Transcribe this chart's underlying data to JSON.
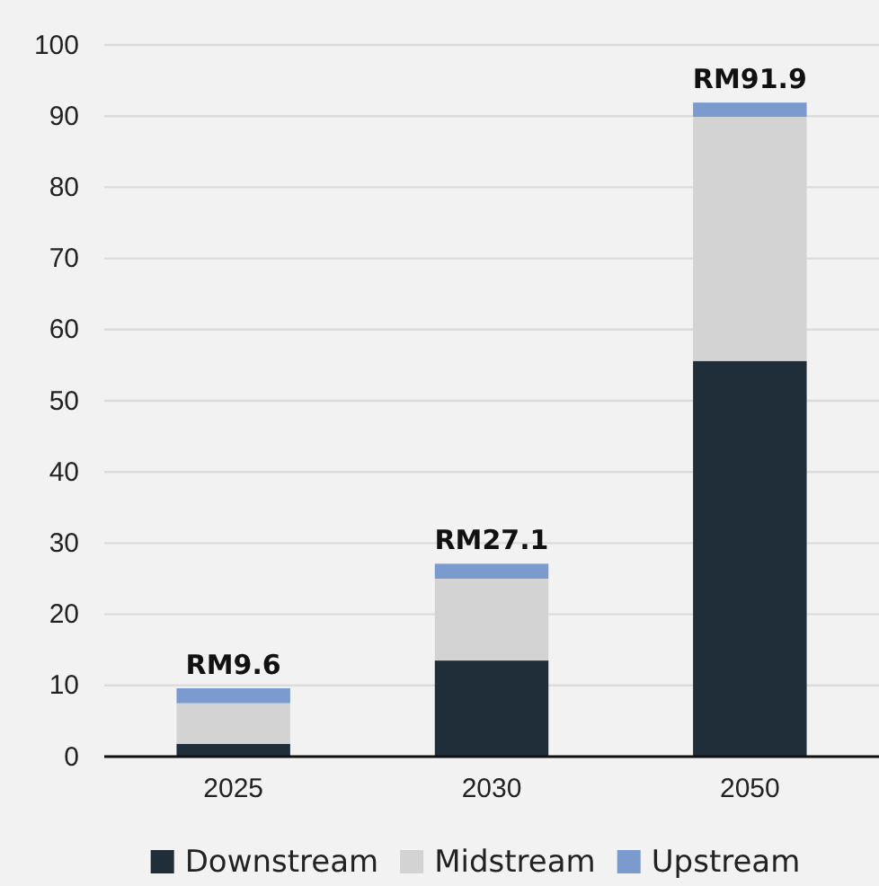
{
  "chart_data": {
    "type": "bar",
    "stacked": true,
    "categories": [
      "2025",
      "2030",
      "2050"
    ],
    "series": [
      {
        "name": "Downstream",
        "color": "#1f2e38",
        "values": [
          1.8,
          13.5,
          55.6
        ]
      },
      {
        "name": "Midstream",
        "color": "#d3d3d3",
        "values": [
          5.7,
          11.5,
          34.3
        ]
      },
      {
        "name": "Upstream",
        "color": "#7b9bcf",
        "values": [
          2.1,
          2.1,
          2.0
        ]
      }
    ],
    "totals": [
      "RM9.6",
      "RM27.1",
      "RM91.9"
    ],
    "ylim": [
      0,
      100
    ],
    "yticks": [
      0,
      10,
      20,
      30,
      40,
      50,
      60,
      70,
      80,
      90,
      100
    ],
    "grid": "y",
    "legend": "bottom"
  }
}
